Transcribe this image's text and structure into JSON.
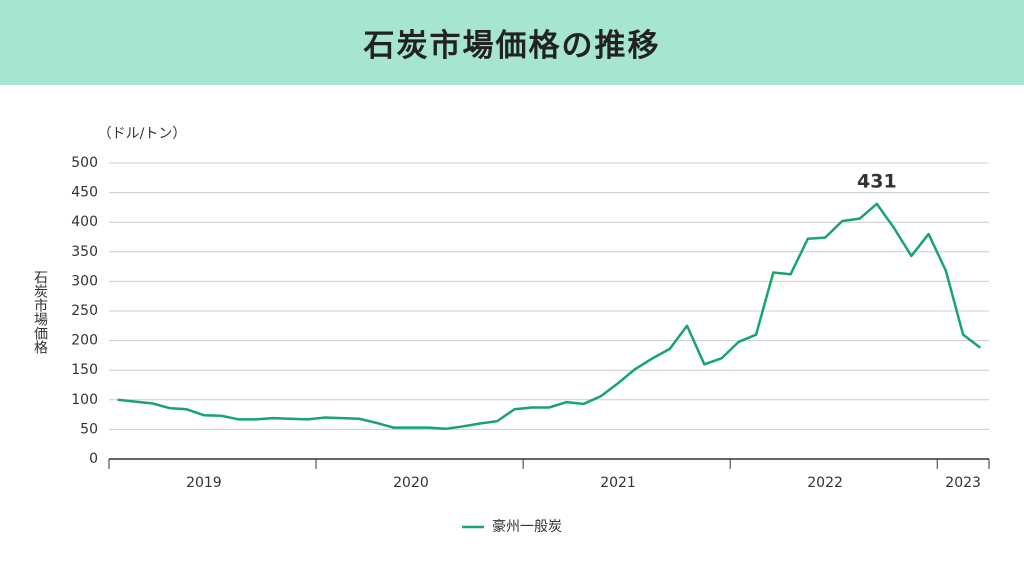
{
  "chart_data": {
    "type": "line",
    "title": "石炭市場価格の推移",
    "unit": "（ドル/トン）",
    "y_label": "石炭市場価格",
    "categories": [
      null,
      null,
      null,
      null,
      null,
      "2019",
      null,
      null,
      null,
      null,
      null,
      null,
      null,
      null,
      null,
      null,
      null,
      "2020",
      null,
      null,
      null,
      null,
      null,
      null,
      null,
      null,
      null,
      null,
      null,
      "2021",
      null,
      null,
      null,
      null,
      null,
      null,
      null,
      null,
      null,
      null,
      null,
      "2022",
      null,
      null,
      null,
      null,
      null,
      null,
      null,
      "2023",
      null
    ],
    "series": [
      {
        "name": "豪州一般炭",
        "color": "#17a56b",
        "values": [
          100,
          97,
          94,
          86,
          84,
          74,
          73,
          67,
          67,
          69,
          68,
          67,
          70,
          69,
          68,
          61,
          53,
          53,
          53,
          51,
          55,
          60,
          64,
          84,
          87,
          87,
          96,
          93,
          106,
          128,
          152,
          170,
          186,
          225,
          160,
          170,
          198,
          210,
          315,
          312,
          372,
          374,
          402,
          406,
          431,
          390,
          343,
          380,
          318,
          210,
          188
        ]
      }
    ],
    "ylim": [
      0,
      500
    ],
    "yticks": [
      0,
      50,
      100,
      150,
      200,
      250,
      300,
      350,
      400,
      450,
      500
    ],
    "grid": true,
    "legend": "bottom"
  }
}
